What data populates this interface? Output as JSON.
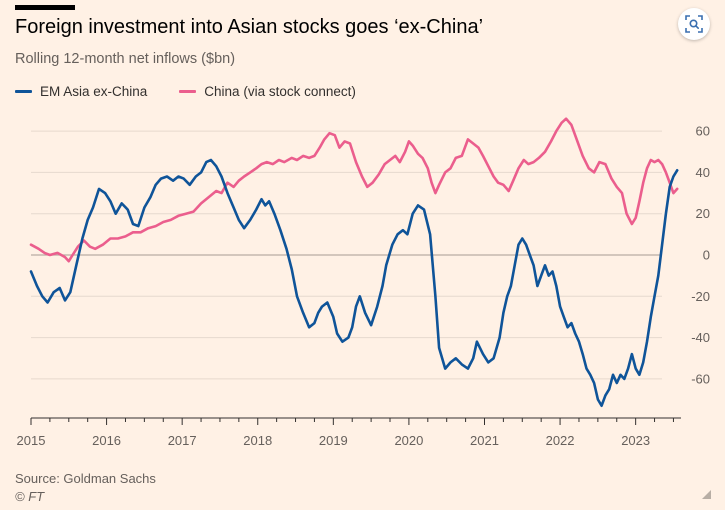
{
  "header": {
    "title": "Foreign investment into Asian stocks goes ‘ex-China’",
    "subtitle": "Rolling 12-month net inflows ($bn)"
  },
  "footer": {
    "source": "Source: Goldman Sachs",
    "credit": "© FT"
  },
  "colors": {
    "background": "#fff1e5",
    "em_asia": "#0f5499",
    "china": "#eb5e8d",
    "grid": "#e6d9ce",
    "text_muted": "#66605c"
  },
  "toolbar": {
    "lens_icon": "visual-search-icon"
  },
  "chart_data": {
    "type": "line",
    "title": "Foreign investment into Asian stocks goes ‘ex-China’",
    "subtitle": "Rolling 12-month net inflows ($bn)",
    "xlabel": "",
    "ylabel": "",
    "xlim": [
      2015.0,
      2023.6
    ],
    "ylim": [
      -78,
      65
    ],
    "yticks": [
      60,
      40,
      20,
      0,
      -20,
      -40,
      -60
    ],
    "ytick_labels": [
      "60",
      "40",
      "20",
      "0",
      "-20",
      "-40",
      "-60"
    ],
    "xticks": [
      2015,
      2016,
      2017,
      2018,
      2019,
      2020,
      2021,
      2022,
      2023
    ],
    "xtick_labels": [
      "2015",
      "2016",
      "2017",
      "2018",
      "2019",
      "2020",
      "2021",
      "2022",
      "2023"
    ],
    "grid": "horizontal",
    "legend_position": "top-left",
    "series": [
      {
        "name": "EM Asia ex-China",
        "color": "#0f5499",
        "points": [
          [
            2015.0,
            -8
          ],
          [
            2015.08,
            -15
          ],
          [
            2015.15,
            -20
          ],
          [
            2015.22,
            -23
          ],
          [
            2015.3,
            -18
          ],
          [
            2015.38,
            -16
          ],
          [
            2015.45,
            -22
          ],
          [
            2015.52,
            -18
          ],
          [
            2015.6,
            -5
          ],
          [
            2015.68,
            8
          ],
          [
            2015.75,
            17
          ],
          [
            2015.82,
            23
          ],
          [
            2015.9,
            32
          ],
          [
            2015.98,
            30
          ],
          [
            2016.05,
            26
          ],
          [
            2016.12,
            20
          ],
          [
            2016.2,
            25
          ],
          [
            2016.28,
            22
          ],
          [
            2016.35,
            15
          ],
          [
            2016.42,
            14
          ],
          [
            2016.5,
            23
          ],
          [
            2016.58,
            28
          ],
          [
            2016.65,
            34
          ],
          [
            2016.72,
            37
          ],
          [
            2016.8,
            38
          ],
          [
            2016.88,
            36
          ],
          [
            2016.95,
            38
          ],
          [
            2017.02,
            37
          ],
          [
            2017.1,
            34
          ],
          [
            2017.18,
            38
          ],
          [
            2017.25,
            40
          ],
          [
            2017.32,
            45
          ],
          [
            2017.38,
            46
          ],
          [
            2017.45,
            43
          ],
          [
            2017.52,
            38
          ],
          [
            2017.6,
            30
          ],
          [
            2017.68,
            23
          ],
          [
            2017.75,
            17
          ],
          [
            2017.82,
            13
          ],
          [
            2017.9,
            17
          ],
          [
            2017.98,
            22
          ],
          [
            2018.05,
            27
          ],
          [
            2018.1,
            24
          ],
          [
            2018.15,
            26
          ],
          [
            2018.22,
            20
          ],
          [
            2018.3,
            12
          ],
          [
            2018.38,
            3
          ],
          [
            2018.45,
            -7
          ],
          [
            2018.52,
            -20
          ],
          [
            2018.6,
            -28
          ],
          [
            2018.68,
            -35
          ],
          [
            2018.75,
            -33
          ],
          [
            2018.8,
            -28
          ],
          [
            2018.85,
            -25
          ],
          [
            2018.92,
            -23
          ],
          [
            2019.0,
            -30
          ],
          [
            2019.05,
            -38
          ],
          [
            2019.12,
            -42
          ],
          [
            2019.2,
            -40
          ],
          [
            2019.25,
            -35
          ],
          [
            2019.3,
            -25
          ],
          [
            2019.35,
            -20
          ],
          [
            2019.42,
            -28
          ],
          [
            2019.5,
            -34
          ],
          [
            2019.58,
            -25
          ],
          [
            2019.65,
            -15
          ],
          [
            2019.7,
            -5
          ],
          [
            2019.78,
            5
          ],
          [
            2019.85,
            10
          ],
          [
            2019.92,
            12
          ],
          [
            2019.98,
            10
          ],
          [
            2020.05,
            20
          ],
          [
            2020.12,
            24
          ],
          [
            2020.2,
            22
          ],
          [
            2020.28,
            10
          ],
          [
            2020.35,
            -20
          ],
          [
            2020.4,
            -45
          ],
          [
            2020.48,
            -55
          ],
          [
            2020.55,
            -52
          ],
          [
            2020.62,
            -50
          ],
          [
            2020.7,
            -53
          ],
          [
            2020.78,
            -55
          ],
          [
            2020.85,
            -50
          ],
          [
            2020.9,
            -42
          ],
          [
            2020.98,
            -48
          ],
          [
            2021.05,
            -52
          ],
          [
            2021.12,
            -50
          ],
          [
            2021.2,
            -40
          ],
          [
            2021.25,
            -28
          ],
          [
            2021.3,
            -20
          ],
          [
            2021.35,
            -15
          ],
          [
            2021.4,
            -5
          ],
          [
            2021.45,
            5
          ],
          [
            2021.5,
            8
          ],
          [
            2021.55,
            5
          ],
          [
            2021.6,
            0
          ],
          [
            2021.65,
            -5
          ],
          [
            2021.7,
            -15
          ],
          [
            2021.75,
            -10
          ],
          [
            2021.8,
            -5
          ],
          [
            2021.85,
            -10
          ],
          [
            2021.9,
            -8
          ],
          [
            2021.95,
            -15
          ],
          [
            2022.0,
            -25
          ],
          [
            2022.05,
            -30
          ],
          [
            2022.1,
            -35
          ],
          [
            2022.15,
            -33
          ],
          [
            2022.2,
            -38
          ],
          [
            2022.25,
            -42
          ],
          [
            2022.3,
            -48
          ],
          [
            2022.35,
            -55
          ],
          [
            2022.4,
            -58
          ],
          [
            2022.45,
            -62
          ],
          [
            2022.5,
            -70
          ],
          [
            2022.55,
            -73
          ],
          [
            2022.6,
            -68
          ],
          [
            2022.65,
            -65
          ],
          [
            2022.7,
            -58
          ],
          [
            2022.75,
            -62
          ],
          [
            2022.8,
            -58
          ],
          [
            2022.85,
            -60
          ],
          [
            2022.9,
            -55
          ],
          [
            2022.95,
            -48
          ],
          [
            2023.0,
            -55
          ],
          [
            2023.05,
            -58
          ],
          [
            2023.1,
            -52
          ],
          [
            2023.15,
            -42
          ],
          [
            2023.2,
            -30
          ],
          [
            2023.25,
            -20
          ],
          [
            2023.3,
            -10
          ],
          [
            2023.35,
            5
          ],
          [
            2023.4,
            20
          ],
          [
            2023.45,
            33
          ],
          [
            2023.5,
            38
          ],
          [
            2023.55,
            41
          ]
        ]
      },
      {
        "name": "China (via stock connect)",
        "color": "#eb5e8d",
        "points": [
          [
            2015.0,
            5
          ],
          [
            2015.1,
            3
          ],
          [
            2015.18,
            1
          ],
          [
            2015.25,
            0
          ],
          [
            2015.35,
            1
          ],
          [
            2015.45,
            -1
          ],
          [
            2015.5,
            -3
          ],
          [
            2015.55,
            0
          ],
          [
            2015.62,
            4
          ],
          [
            2015.7,
            7
          ],
          [
            2015.78,
            4
          ],
          [
            2015.85,
            3
          ],
          [
            2015.95,
            5
          ],
          [
            2016.05,
            8
          ],
          [
            2016.15,
            8
          ],
          [
            2016.25,
            9
          ],
          [
            2016.35,
            11
          ],
          [
            2016.45,
            11
          ],
          [
            2016.55,
            13
          ],
          [
            2016.65,
            14
          ],
          [
            2016.75,
            16
          ],
          [
            2016.85,
            17
          ],
          [
            2016.95,
            19
          ],
          [
            2017.05,
            20
          ],
          [
            2017.15,
            21
          ],
          [
            2017.25,
            25
          ],
          [
            2017.35,
            28
          ],
          [
            2017.45,
            31
          ],
          [
            2017.52,
            30
          ],
          [
            2017.6,
            35
          ],
          [
            2017.68,
            33
          ],
          [
            2017.75,
            36
          ],
          [
            2017.82,
            38
          ],
          [
            2017.9,
            40
          ],
          [
            2017.98,
            42
          ],
          [
            2018.05,
            44
          ],
          [
            2018.12,
            45
          ],
          [
            2018.2,
            44
          ],
          [
            2018.28,
            46
          ],
          [
            2018.35,
            45
          ],
          [
            2018.45,
            47
          ],
          [
            2018.52,
            46
          ],
          [
            2018.6,
            48
          ],
          [
            2018.68,
            47
          ],
          [
            2018.75,
            48
          ],
          [
            2018.82,
            52
          ],
          [
            2018.88,
            56
          ],
          [
            2018.95,
            59
          ],
          [
            2019.02,
            58
          ],
          [
            2019.08,
            52
          ],
          [
            2019.15,
            55
          ],
          [
            2019.22,
            54
          ],
          [
            2019.3,
            45
          ],
          [
            2019.38,
            38
          ],
          [
            2019.45,
            33
          ],
          [
            2019.52,
            35
          ],
          [
            2019.6,
            39
          ],
          [
            2019.68,
            44
          ],
          [
            2019.75,
            46
          ],
          [
            2019.82,
            48
          ],
          [
            2019.88,
            45
          ],
          [
            2019.95,
            50
          ],
          [
            2020.0,
            55
          ],
          [
            2020.05,
            53
          ],
          [
            2020.12,
            49
          ],
          [
            2020.18,
            47
          ],
          [
            2020.25,
            42
          ],
          [
            2020.3,
            35
          ],
          [
            2020.35,
            30
          ],
          [
            2020.4,
            34
          ],
          [
            2020.48,
            40
          ],
          [
            2020.55,
            42
          ],
          [
            2020.62,
            47
          ],
          [
            2020.7,
            48
          ],
          [
            2020.78,
            56
          ],
          [
            2020.85,
            54
          ],
          [
            2020.92,
            52
          ],
          [
            2020.98,
            48
          ],
          [
            2021.05,
            43
          ],
          [
            2021.12,
            38
          ],
          [
            2021.18,
            35
          ],
          [
            2021.25,
            34
          ],
          [
            2021.32,
            31
          ],
          [
            2021.38,
            36
          ],
          [
            2021.45,
            42
          ],
          [
            2021.52,
            46
          ],
          [
            2021.58,
            44
          ],
          [
            2021.65,
            45
          ],
          [
            2021.72,
            47
          ],
          [
            2021.8,
            50
          ],
          [
            2021.88,
            55
          ],
          [
            2021.95,
            60
          ],
          [
            2022.02,
            64
          ],
          [
            2022.08,
            66
          ],
          [
            2022.15,
            63
          ],
          [
            2022.22,
            56
          ],
          [
            2022.3,
            48
          ],
          [
            2022.38,
            42
          ],
          [
            2022.45,
            40
          ],
          [
            2022.52,
            45
          ],
          [
            2022.6,
            44
          ],
          [
            2022.68,
            37
          ],
          [
            2022.75,
            33
          ],
          [
            2022.82,
            30
          ],
          [
            2022.88,
            20
          ],
          [
            2022.95,
            15
          ],
          [
            2023.0,
            18
          ],
          [
            2023.05,
            26
          ],
          [
            2023.1,
            35
          ],
          [
            2023.15,
            42
          ],
          [
            2023.2,
            46
          ],
          [
            2023.25,
            45
          ],
          [
            2023.3,
            46
          ],
          [
            2023.35,
            44
          ],
          [
            2023.4,
            40
          ],
          [
            2023.45,
            35
          ],
          [
            2023.5,
            30
          ],
          [
            2023.55,
            32
          ]
        ]
      }
    ]
  }
}
